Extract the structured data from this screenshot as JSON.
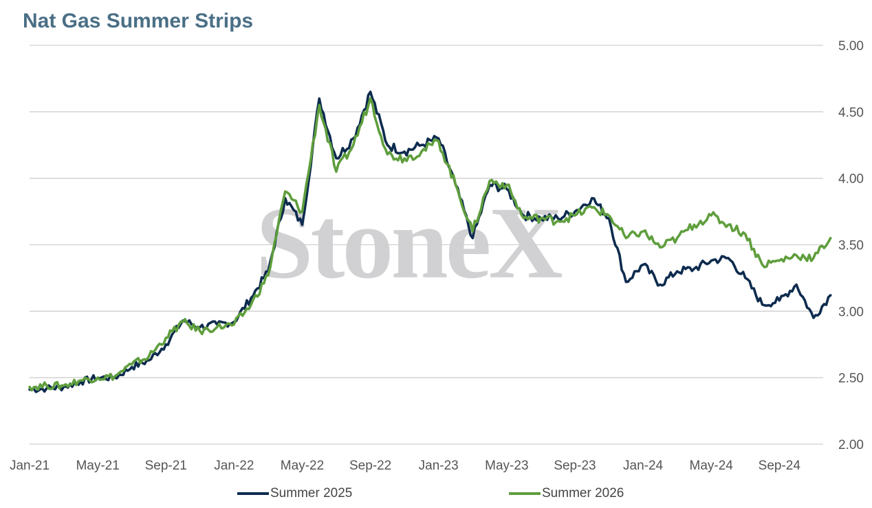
{
  "title": "Nat Gas Summer Strips",
  "watermark": "StoneX",
  "colors": {
    "series1": "#0d2b4e",
    "series2": "#5f9e3d",
    "grid": "#cfcfcf",
    "title": "#4a6f86"
  },
  "legend": {
    "series1": "Summer 2025",
    "series2": "Summer 2026"
  },
  "chart_data": {
    "type": "line",
    "title": "Nat Gas Summer Strips",
    "xlabel": "",
    "ylabel": "",
    "ylim": [
      2.0,
      5.0
    ],
    "yticks": [
      "2.00",
      "2.50",
      "3.00",
      "3.50",
      "4.00",
      "4.50",
      "5.00"
    ],
    "xlim": [
      "2021-01",
      "2024-12"
    ],
    "xticks": [
      "Jan-21",
      "May-21",
      "Sep-21",
      "Jan-22",
      "May-22",
      "Sep-22",
      "Jan-23",
      "May-23",
      "Sep-23",
      "Jan-24",
      "May-24",
      "Sep-24"
    ],
    "grid": "horizontal",
    "legend_position": "bottom",
    "y_axis_side": "right",
    "series": [
      {
        "name": "Summer 2025",
        "x": [
          "2021-01",
          "2021-02",
          "2021-03",
          "2021-04",
          "2021-05",
          "2021-06",
          "2021-07",
          "2021-08",
          "2021-09",
          "2021-10",
          "2021-11",
          "2021-12",
          "2022-01",
          "2022-02",
          "2022-03",
          "2022-04",
          "2022-05",
          "2022-06",
          "2022-07",
          "2022-08",
          "2022-09",
          "2022-10",
          "2022-11",
          "2022-12",
          "2023-01",
          "2023-02",
          "2023-03",
          "2023-04",
          "2023-05",
          "2023-06",
          "2023-07",
          "2023-08",
          "2023-09",
          "2023-10",
          "2023-11",
          "2023-12",
          "2024-01",
          "2024-02",
          "2024-03",
          "2024-04",
          "2024-05",
          "2024-06",
          "2024-07",
          "2024-08",
          "2024-09",
          "2024-10",
          "2024-11",
          "2024-12"
        ],
        "values": [
          2.41,
          2.42,
          2.43,
          2.47,
          2.5,
          2.5,
          2.58,
          2.63,
          2.75,
          2.93,
          2.88,
          2.9,
          2.92,
          3.1,
          3.3,
          3.85,
          3.65,
          4.6,
          4.15,
          4.3,
          4.65,
          4.25,
          4.2,
          4.25,
          4.3,
          3.95,
          3.55,
          3.95,
          3.92,
          3.72,
          3.7,
          3.7,
          3.75,
          3.85,
          3.7,
          3.22,
          3.35,
          3.2,
          3.3,
          3.32,
          3.38,
          3.4,
          3.25,
          3.05,
          3.08,
          3.2,
          2.95,
          3.12
        ]
      },
      {
        "name": "Summer 2026",
        "x": [
          "2021-01",
          "2021-02",
          "2021-03",
          "2021-04",
          "2021-05",
          "2021-06",
          "2021-07",
          "2021-08",
          "2021-09",
          "2021-10",
          "2021-11",
          "2021-12",
          "2022-01",
          "2022-02",
          "2022-03",
          "2022-04",
          "2022-05",
          "2022-06",
          "2022-07",
          "2022-08",
          "2022-09",
          "2022-10",
          "2022-11",
          "2022-12",
          "2023-01",
          "2023-02",
          "2023-03",
          "2023-04",
          "2023-05",
          "2023-06",
          "2023-07",
          "2023-08",
          "2023-09",
          "2023-10",
          "2023-11",
          "2023-12",
          "2024-01",
          "2024-02",
          "2024-03",
          "2024-04",
          "2024-05",
          "2024-06",
          "2024-07",
          "2024-08",
          "2024-09",
          "2024-10",
          "2024-11",
          "2024-12"
        ],
        "values": [
          2.43,
          2.44,
          2.44,
          2.48,
          2.5,
          2.51,
          2.6,
          2.66,
          2.8,
          2.92,
          2.85,
          2.88,
          2.9,
          3.05,
          3.27,
          3.9,
          3.75,
          4.55,
          4.05,
          4.25,
          4.6,
          4.18,
          4.15,
          4.2,
          4.28,
          3.95,
          3.6,
          3.98,
          3.95,
          3.7,
          3.7,
          3.68,
          3.72,
          3.78,
          3.72,
          3.55,
          3.6,
          3.48,
          3.55,
          3.65,
          3.72,
          3.65,
          3.58,
          3.35,
          3.38,
          3.42,
          3.4,
          3.55
        ]
      }
    ]
  }
}
